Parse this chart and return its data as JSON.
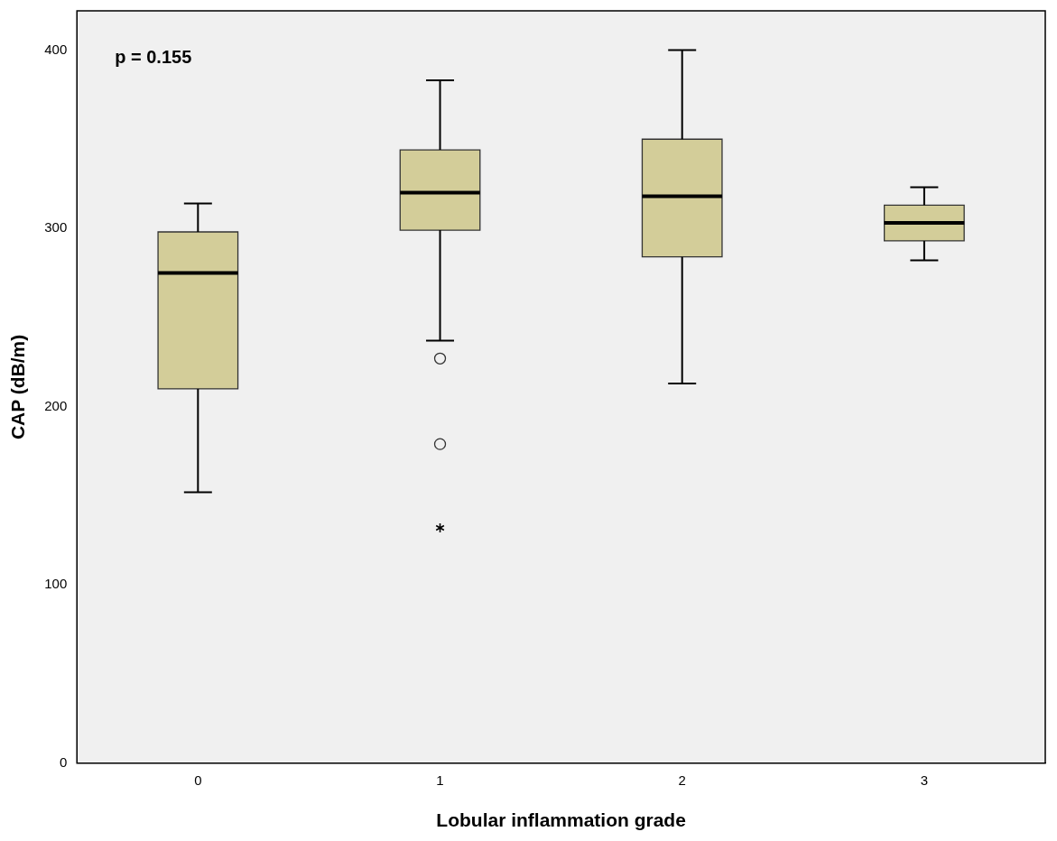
{
  "chart_data": {
    "type": "box",
    "categories": [
      "0",
      "1",
      "2",
      "3"
    ],
    "boxes": [
      {
        "low": 152,
        "q1": 210,
        "median": 275,
        "q3": 298,
        "high": 314
      },
      {
        "low": 237,
        "q1": 299,
        "median": 320,
        "q3": 344,
        "high": 383,
        "outliers": [
          227,
          179,
          132
        ]
      },
      {
        "low": 213,
        "q1": 284,
        "median": 318,
        "q3": 350,
        "high": 400
      },
      {
        "low": 282,
        "q1": 293,
        "median": 303,
        "q3": 313,
        "high": 323
      }
    ],
    "color": "#d3cd99",
    "xlabel": "Lobular inflammation grade",
    "ylabel": "CAP (dB/m)",
    "ylim": [
      0,
      422
    ],
    "yticks": [
      0,
      100,
      200,
      300,
      400
    ],
    "grid": false,
    "legend": false,
    "annotations": [
      "p = 0.155"
    ]
  }
}
